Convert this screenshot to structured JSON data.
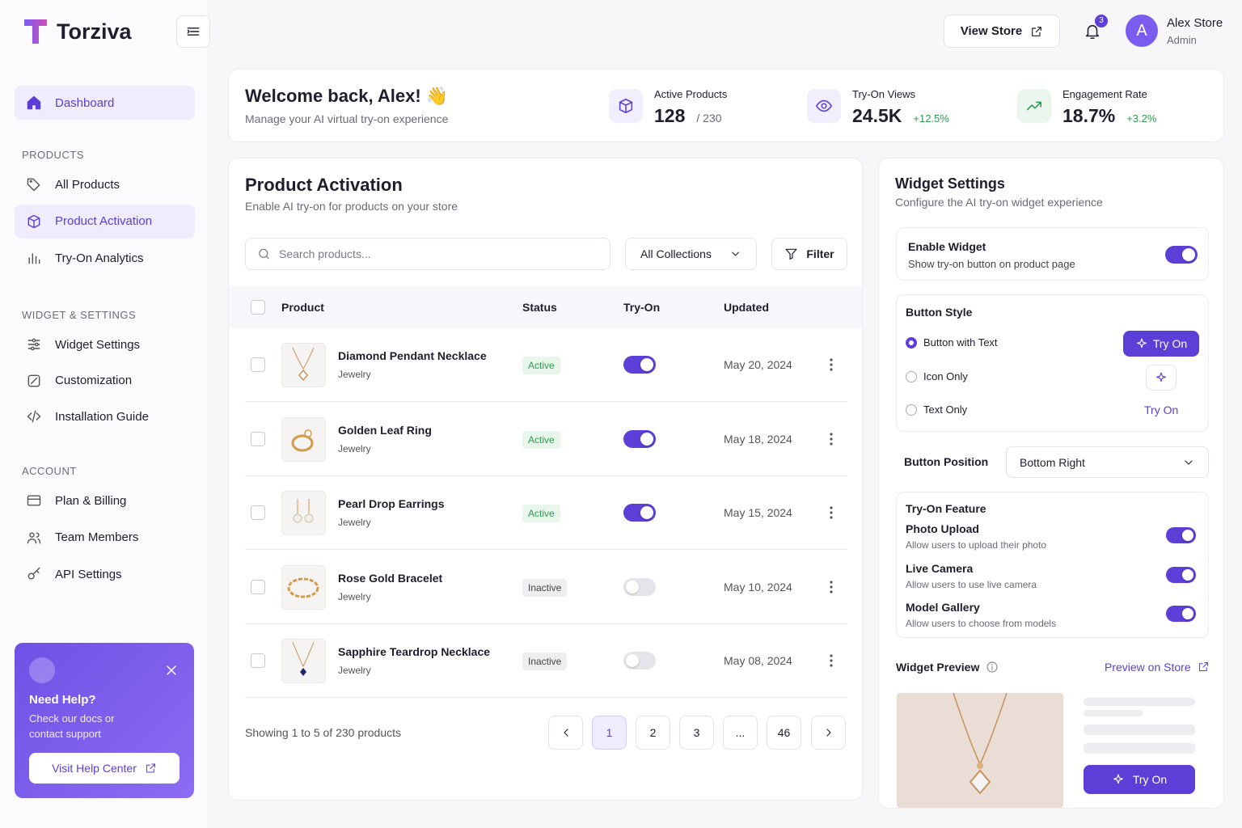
{
  "brand": {
    "name": "Torziva"
  },
  "header": {
    "view_store": "View Store",
    "notification_count": 3,
    "user": {
      "initial": "A",
      "name": "Alex Store",
      "role": "Admin"
    }
  },
  "sidebar": {
    "dashboard": "Dashboard",
    "sections": [
      {
        "title": "PRODUCTS",
        "items": [
          {
            "label": "All Products",
            "active": false
          },
          {
            "label": "Product Activation",
            "active": true
          },
          {
            "label": "Try-On Analytics",
            "active": false
          }
        ]
      },
      {
        "title": "WIDGET & SETTINGS",
        "items": [
          {
            "label": "Widget Settings",
            "active": false
          },
          {
            "label": "Customization",
            "active": false
          },
          {
            "label": "Installation Guide",
            "active": false
          }
        ]
      },
      {
        "title": "ACCOUNT",
        "items": [
          {
            "label": "Plan & Billing",
            "active": false
          },
          {
            "label": "Team Members",
            "active": false
          },
          {
            "label": "API Settings",
            "active": false
          }
        ]
      }
    ]
  },
  "help": {
    "title": "Need Help?",
    "text": "Check our docs or contact support",
    "button": "Visit Help Center"
  },
  "welcome": {
    "title": "Welcome back, Alex! 👋",
    "subtitle": "Manage your AI virtual try-on experience",
    "stats": [
      {
        "label": "Active Products",
        "value": "128",
        "total": "/ 230"
      },
      {
        "label": "Try-On Views",
        "value": "24.5K",
        "change": "+12.5%"
      },
      {
        "label": "Engagement Rate",
        "value": "18.7%",
        "change": "+3.2%"
      }
    ]
  },
  "products": {
    "title": "Product Activation",
    "subtitle": "Enable AI try-on for products on your store",
    "search_placeholder": "Search products...",
    "collection": "All Collections",
    "filter": "Filter",
    "columns": [
      "Product",
      "Status",
      "Try-On",
      "Updated"
    ],
    "rows": [
      {
        "name": "Diamond Pendant Necklace",
        "category": "Jewelry",
        "status": "Active",
        "try_on": true,
        "updated": "May 20, 2024"
      },
      {
        "name": "Golden Leaf Ring",
        "category": "Jewelry",
        "status": "Active",
        "try_on": true,
        "updated": "May 18, 2024"
      },
      {
        "name": "Pearl Drop Earrings",
        "category": "Jewelry",
        "status": "Active",
        "try_on": true,
        "updated": "May 15, 2024"
      },
      {
        "name": "Rose Gold Bracelet",
        "category": "Jewelry",
        "status": "Inactive",
        "try_on": false,
        "updated": "May 10, 2024"
      },
      {
        "name": "Sapphire Teardrop Necklace",
        "category": "Jewelry",
        "status": "Inactive",
        "try_on": false,
        "updated": "May 08, 2024"
      }
    ],
    "summary": "Showing 1 to 5 of 230 products",
    "pages": [
      {
        "label": "1",
        "current": true
      },
      {
        "label": "2",
        "current": false
      },
      {
        "label": "3",
        "current": false
      },
      {
        "label": "...",
        "current": false
      },
      {
        "label": "46",
        "current": false
      }
    ]
  },
  "widget": {
    "title": "Widget Settings",
    "subtitle": "Configure the AI try-on widget experience",
    "enable": {
      "title": "Enable Widget",
      "text": "Show try-on button on product page",
      "on": true
    },
    "button_style": {
      "title": "Button Style",
      "options": [
        {
          "label": "Button with Text",
          "selected": true,
          "preview": "Try On"
        },
        {
          "label": "Icon Only",
          "selected": false
        },
        {
          "label": "Text Only",
          "selected": false,
          "preview": "Try On"
        }
      ]
    },
    "position": {
      "label": "Button Position",
      "value": "Bottom Right"
    },
    "features": {
      "title": "Try-On Feature",
      "items": [
        {
          "title": "Photo Upload",
          "text": "Allow users to upload their photo",
          "on": true
        },
        {
          "title": "Live Camera",
          "text": "Allow users to use live camera",
          "on": true
        },
        {
          "title": "Model Gallery",
          "text": "Allow users to choose from models",
          "on": true
        }
      ]
    },
    "preview": {
      "title": "Widget Preview",
      "link": "Preview on Store",
      "button": "Try On"
    }
  }
}
